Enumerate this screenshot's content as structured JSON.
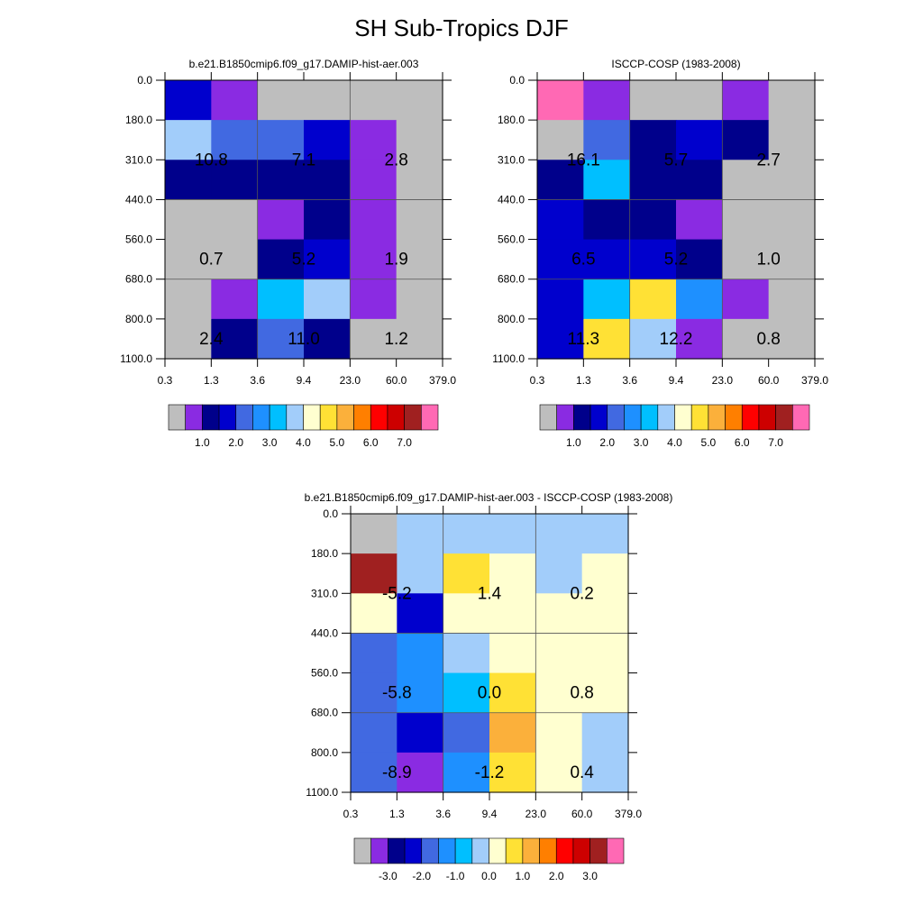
{
  "title": "SH Sub-Tropics DJF",
  "colors": {
    "absolute_palette": [
      "#bebebe",
      "#8a2be2",
      "#00008b",
      "#0000cd",
      "#4169e1",
      "#1e90ff",
      "#00bfff",
      "#a2cdfa",
      "#ffffd0",
      "#ffe135",
      "#fbb03b",
      "#ff7f00",
      "#ff0000",
      "#cd0000",
      "#a02020",
      "#ff69b4"
    ],
    "diff_palette": [
      "#bebebe",
      "#8a2be2",
      "#00008b",
      "#0000cd",
      "#4169e1",
      "#1e90ff",
      "#00bfff",
      "#a2cdfa",
      "#ffffd0",
      "#ffe135",
      "#fbb03b",
      "#ff7f00",
      "#ff0000",
      "#cd0000",
      "#a02020",
      "#ff69b4"
    ]
  },
  "chart_data": [
    {
      "type": "heatmap",
      "title": "b.e21.B1850cmip6.f09_g17.DAMIP-hist-aer.003",
      "x_ticks": [
        "0.3",
        "1.3",
        "3.6",
        "9.4",
        "23.0",
        "60.0",
        "379.0"
      ],
      "y_ticks": [
        "0.0",
        "180.0",
        "310.0",
        "440.0",
        "560.0",
        "680.0",
        "800.0",
        "1100.0"
      ],
      "cells": [
        [
          3,
          1,
          0,
          0,
          0,
          0
        ],
        [
          7,
          4,
          4,
          3,
          1,
          0
        ],
        [
          2,
          2,
          2,
          2,
          1,
          0
        ],
        [
          0,
          0,
          1,
          2,
          1,
          0
        ],
        [
          0,
          0,
          2,
          3,
          1,
          0
        ],
        [
          0,
          1,
          6,
          7,
          1,
          0
        ],
        [
          0,
          2,
          4,
          2,
          0,
          0
        ]
      ],
      "annotations": [
        {
          "row": 1.5,
          "col": 1,
          "text": "10.8"
        },
        {
          "row": 1.5,
          "col": 3,
          "text": "7.1"
        },
        {
          "row": 1.5,
          "col": 5,
          "text": "2.8"
        },
        {
          "row": 4,
          "col": 1,
          "text": "0.7"
        },
        {
          "row": 4,
          "col": 3,
          "text": "5.2"
        },
        {
          "row": 4,
          "col": 5,
          "text": "1.9"
        },
        {
          "row": 6,
          "col": 1,
          "text": "2.4"
        },
        {
          "row": 6,
          "col": 3,
          "text": "11.0"
        },
        {
          "row": 6,
          "col": 5,
          "text": "1.2"
        }
      ],
      "colorbar_labels": [
        "1.0",
        "2.0",
        "3.0",
        "4.0",
        "5.0",
        "6.0",
        "7.0"
      ]
    },
    {
      "type": "heatmap",
      "title": "ISCCP-COSP (1983-2008)",
      "x_ticks": [
        "0.3",
        "1.3",
        "3.6",
        "9.4",
        "23.0",
        "60.0",
        "379.0"
      ],
      "y_ticks": [
        "0.0",
        "180.0",
        "310.0",
        "440.0",
        "560.0",
        "680.0",
        "800.0",
        "1100.0"
      ],
      "cells": [
        [
          15,
          1,
          0,
          0,
          1,
          0
        ],
        [
          0,
          4,
          2,
          3,
          2,
          0
        ],
        [
          2,
          6,
          2,
          2,
          0,
          0
        ],
        [
          3,
          2,
          2,
          1,
          0,
          0
        ],
        [
          3,
          3,
          3,
          2,
          0,
          0
        ],
        [
          3,
          6,
          9,
          5,
          1,
          0
        ],
        [
          3,
          9,
          7,
          1,
          0,
          0
        ]
      ],
      "annotations": [
        {
          "row": 1.5,
          "col": 1,
          "text": "16.1"
        },
        {
          "row": 1.5,
          "col": 3,
          "text": "5.7"
        },
        {
          "row": 1.5,
          "col": 5,
          "text": "2.7"
        },
        {
          "row": 4,
          "col": 1,
          "text": "6.5"
        },
        {
          "row": 4,
          "col": 3,
          "text": "5.2"
        },
        {
          "row": 4,
          "col": 5,
          "text": "1.0"
        },
        {
          "row": 6,
          "col": 1,
          "text": "11.3"
        },
        {
          "row": 6,
          "col": 3,
          "text": "12.2"
        },
        {
          "row": 6,
          "col": 5,
          "text": "0.8"
        }
      ],
      "colorbar_labels": [
        "1.0",
        "2.0",
        "3.0",
        "4.0",
        "5.0",
        "6.0",
        "7.0"
      ]
    },
    {
      "type": "heatmap",
      "title": "b.e21.B1850cmip6.f09_g17.DAMIP-hist-aer.003 - ISCCP-COSP (1983-2008)",
      "x_ticks": [
        "0.3",
        "1.3",
        "3.6",
        "9.4",
        "23.0",
        "60.0",
        "379.0"
      ],
      "y_ticks": [
        "0.0",
        "180.0",
        "310.0",
        "440.0",
        "560.0",
        "680.0",
        "800.0",
        "1100.0"
      ],
      "cells": [
        [
          0,
          7,
          7,
          7,
          7,
          7
        ],
        [
          14,
          7,
          9,
          8,
          7,
          8
        ],
        [
          8,
          3,
          8,
          8,
          8,
          8
        ],
        [
          4,
          5,
          7,
          8,
          8,
          8
        ],
        [
          4,
          5,
          6,
          9,
          8,
          8
        ],
        [
          4,
          3,
          4,
          10,
          8,
          7
        ],
        [
          4,
          1,
          5,
          9,
          8,
          7
        ]
      ],
      "annotations": [
        {
          "row": 1.5,
          "col": 1,
          "text": "-5.2"
        },
        {
          "row": 1.5,
          "col": 3,
          "text": "1.4"
        },
        {
          "row": 1.5,
          "col": 5,
          "text": "0.2"
        },
        {
          "row": 4,
          "col": 1,
          "text": "-5.8"
        },
        {
          "row": 4,
          "col": 3,
          "text": "0.0"
        },
        {
          "row": 4,
          "col": 5,
          "text": "0.8"
        },
        {
          "row": 6,
          "col": 1,
          "text": "-8.9"
        },
        {
          "row": 6,
          "col": 3,
          "text": "-1.2"
        },
        {
          "row": 6,
          "col": 5,
          "text": "0.4"
        }
      ],
      "colorbar_labels": [
        "-3.0",
        "-2.0",
        "-1.0",
        "0.0",
        "1.0",
        "2.0",
        "3.0"
      ]
    }
  ]
}
